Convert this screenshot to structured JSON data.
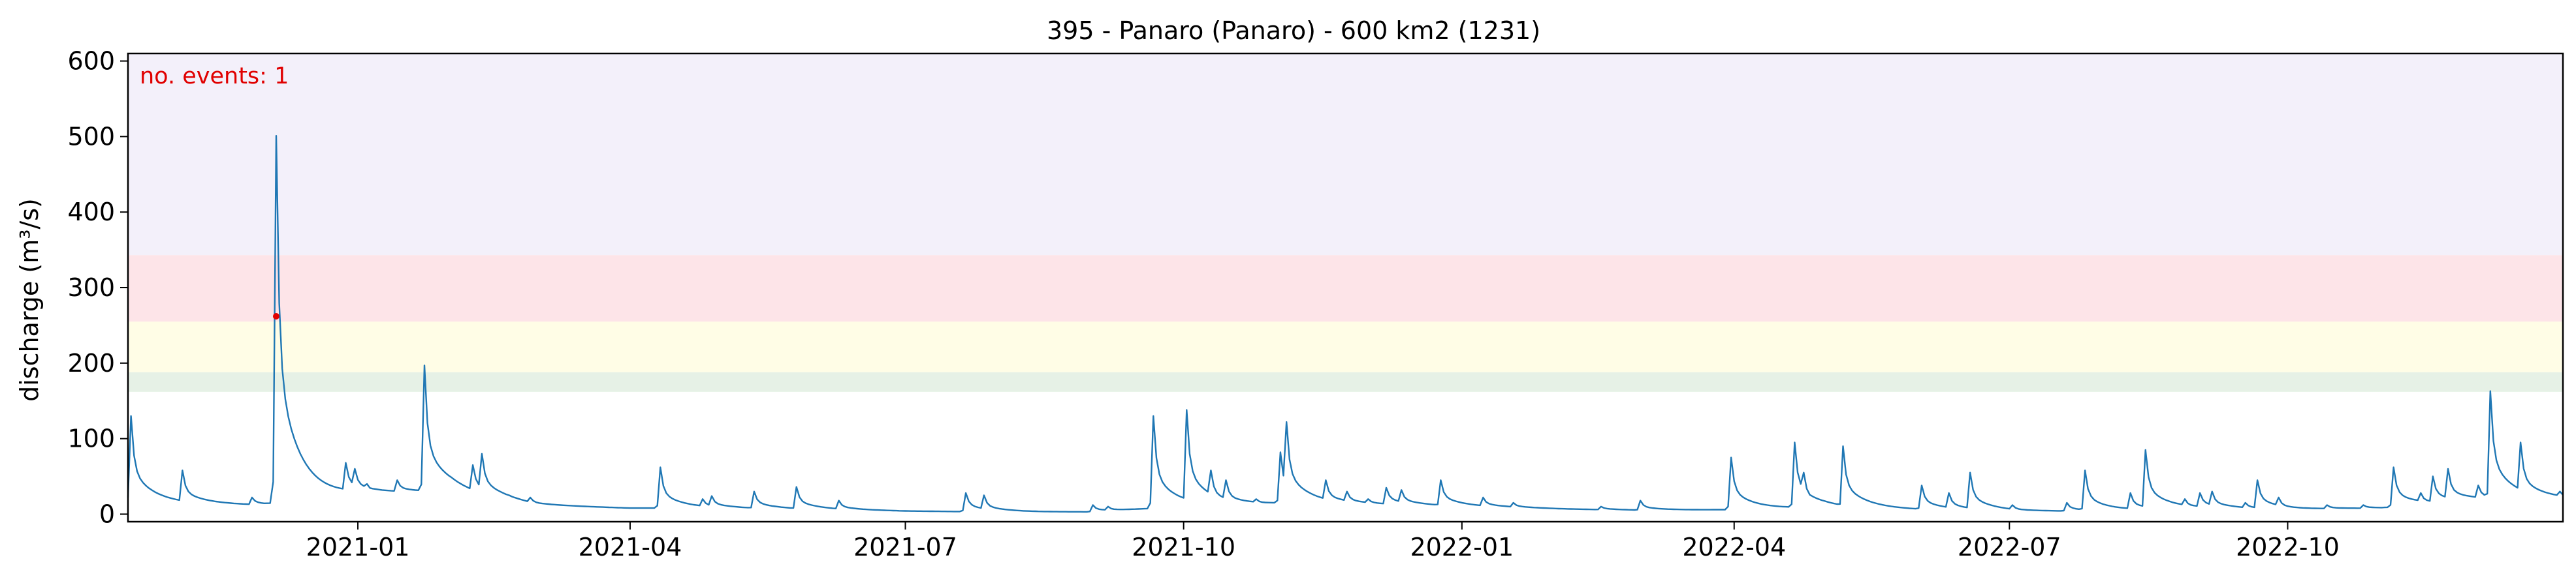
{
  "chart_data": {
    "type": "line",
    "title": "395 - Panaro (Panaro) - 600 km2 (1231)",
    "xlabel": "",
    "ylabel": "discharge (m³/s)",
    "annotation": "no. events: 1",
    "annotation_color": "#e00000",
    "line_color": "#1f77b4",
    "event_color": "#e00000",
    "grid": false,
    "xlim": [
      "2020-10-17",
      "2022-12-31"
    ],
    "ylim": [
      -10,
      610
    ],
    "x_ticks": [
      {
        "date": "2021-01-01",
        "label": "2021-01"
      },
      {
        "date": "2021-04-01",
        "label": "2021-04"
      },
      {
        "date": "2021-07-01",
        "label": "2021-07"
      },
      {
        "date": "2021-10-01",
        "label": "2021-10"
      },
      {
        "date": "2022-01-01",
        "label": "2022-01"
      },
      {
        "date": "2022-04-01",
        "label": "2022-04"
      },
      {
        "date": "2022-07-01",
        "label": "2022-07"
      },
      {
        "date": "2022-10-01",
        "label": "2022-10"
      }
    ],
    "y_ticks": [
      0,
      100,
      200,
      300,
      400,
      500,
      600
    ],
    "threshold_bands": [
      {
        "from": 162,
        "to": 188,
        "color": "#e6f1e6"
      },
      {
        "from": 188,
        "to": 255,
        "color": "#fffde6"
      },
      {
        "from": 255,
        "to": 343,
        "color": "#fde4e8"
      },
      {
        "from": 343,
        "to": 610,
        "color": "#f3f0fa"
      }
    ],
    "events": [
      {
        "date": "2020-12-05",
        "value": 262
      }
    ],
    "base_flow": [
      [
        "2020-10-17",
        15
      ],
      [
        "2020-12-01",
        12
      ],
      [
        "2021-01-01",
        28
      ],
      [
        "2021-02-01",
        30
      ],
      [
        "2021-03-01",
        12
      ],
      [
        "2021-04-01",
        8
      ],
      [
        "2021-05-01",
        8
      ],
      [
        "2021-06-01",
        6
      ],
      [
        "2021-07-01",
        4
      ],
      [
        "2021-08-01",
        3
      ],
      [
        "2021-09-01",
        3
      ],
      [
        "2021-10-01",
        10
      ],
      [
        "2021-11-01",
        14
      ],
      [
        "2021-12-01",
        13
      ],
      [
        "2022-01-01",
        10
      ],
      [
        "2022-02-01",
        7
      ],
      [
        "2022-03-01",
        5
      ],
      [
        "2022-04-01",
        6
      ],
      [
        "2022-05-01",
        9
      ],
      [
        "2022-06-01",
        6
      ],
      [
        "2022-07-01",
        4
      ],
      [
        "2022-08-01",
        4
      ],
      [
        "2022-09-01",
        8
      ],
      [
        "2022-10-01",
        6
      ],
      [
        "2022-11-01",
        8
      ],
      [
        "2022-12-01",
        18
      ],
      [
        "2022-12-31",
        20
      ]
    ],
    "peaks": [
      [
        "2020-10-18",
        130
      ],
      [
        "2020-11-04",
        58
      ],
      [
        "2020-11-22",
        14
      ],
      [
        "2020-11-27",
        22
      ],
      [
        "2020-12-05",
        501
      ],
      [
        "2020-12-07",
        65
      ],
      [
        "2020-12-13",
        48
      ],
      [
        "2020-12-17",
        36
      ],
      [
        "2020-12-28",
        68
      ],
      [
        "2020-12-31",
        60
      ],
      [
        "2021-01-04",
        40
      ],
      [
        "2021-01-14",
        45
      ],
      [
        "2021-01-23",
        197
      ],
      [
        "2021-02-03",
        30
      ],
      [
        "2021-02-08",
        65
      ],
      [
        "2021-02-11",
        80
      ],
      [
        "2021-02-20",
        25
      ],
      [
        "2021-02-27",
        22
      ],
      [
        "2021-04-11",
        62
      ],
      [
        "2021-04-25",
        20
      ],
      [
        "2021-04-28",
        24
      ],
      [
        "2021-05-12",
        30
      ],
      [
        "2021-05-26",
        36
      ],
      [
        "2021-06-09",
        18
      ],
      [
        "2021-07-21",
        28
      ],
      [
        "2021-07-27",
        25
      ],
      [
        "2021-09-01",
        12
      ],
      [
        "2021-09-06",
        10
      ],
      [
        "2021-09-21",
        130
      ],
      [
        "2021-09-28",
        20
      ],
      [
        "2021-10-02",
        138
      ],
      [
        "2021-10-10",
        58
      ],
      [
        "2021-10-15",
        45
      ],
      [
        "2021-10-25",
        20
      ],
      [
        "2021-11-02",
        82
      ],
      [
        "2021-11-04",
        122
      ],
      [
        "2021-11-09",
        30
      ],
      [
        "2021-11-17",
        45
      ],
      [
        "2021-11-24",
        30
      ],
      [
        "2021-12-01",
        20
      ],
      [
        "2021-12-07",
        35
      ],
      [
        "2021-12-12",
        32
      ],
      [
        "2021-12-25",
        45
      ],
      [
        "2022-01-08",
        22
      ],
      [
        "2022-01-18",
        15
      ],
      [
        "2022-02-16",
        10
      ],
      [
        "2022-03-01",
        18
      ],
      [
        "2022-03-31",
        75
      ],
      [
        "2022-04-21",
        95
      ],
      [
        "2022-04-24",
        55
      ],
      [
        "2022-05-07",
        90
      ],
      [
        "2022-05-10",
        30
      ],
      [
        "2022-06-02",
        38
      ],
      [
        "2022-06-11",
        28
      ],
      [
        "2022-06-18",
        55
      ],
      [
        "2022-07-02",
        12
      ],
      [
        "2022-07-20",
        15
      ],
      [
        "2022-07-26",
        58
      ],
      [
        "2022-08-10",
        28
      ],
      [
        "2022-08-15",
        85
      ],
      [
        "2022-08-28",
        20
      ],
      [
        "2022-09-02",
        28
      ],
      [
        "2022-09-06",
        30
      ],
      [
        "2022-09-17",
        15
      ],
      [
        "2022-09-21",
        45
      ],
      [
        "2022-09-28",
        22
      ],
      [
        "2022-10-14",
        12
      ],
      [
        "2022-10-26",
        12
      ],
      [
        "2022-11-05",
        62
      ],
      [
        "2022-11-14",
        28
      ],
      [
        "2022-11-18",
        50
      ],
      [
        "2022-11-23",
        60
      ],
      [
        "2022-12-03",
        38
      ],
      [
        "2022-12-07",
        163
      ],
      [
        "2022-12-17",
        95
      ],
      [
        "2022-12-30",
        30
      ]
    ]
  }
}
